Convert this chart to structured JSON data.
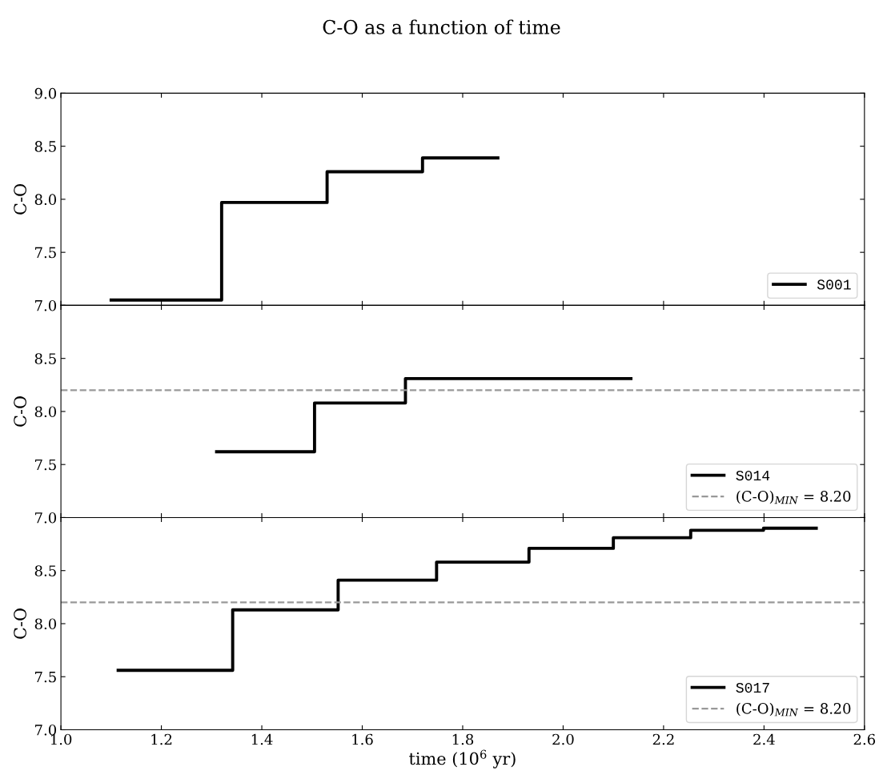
{
  "chart_data": [
    {
      "type": "step",
      "title": "C-O as a function of time",
      "ylabel": "C-O",
      "xlim": [
        1.0,
        2.6
      ],
      "xticks": [
        {
          "value": 1.0,
          "label": null
        },
        {
          "value": 1.2,
          "label": null
        },
        {
          "value": 1.4,
          "label": null
        },
        {
          "value": 1.6,
          "label": null
        },
        {
          "value": 1.8,
          "label": null
        },
        {
          "value": 2.0,
          "label": null
        },
        {
          "value": 2.2,
          "label": null
        },
        {
          "value": 2.4,
          "label": null
        },
        {
          "value": 2.6,
          "label": null
        }
      ],
      "ylim": [
        7.0,
        9.0
      ],
      "yticks": [
        {
          "value": 7.0,
          "label": "7.0"
        },
        {
          "value": 7.5,
          "label": "7.5"
        },
        {
          "value": 8.0,
          "label": "8.0"
        },
        {
          "value": 8.5,
          "label": "8.5"
        },
        {
          "value": 9.0,
          "label": "9.0"
        }
      ],
      "tick_labels": "y",
      "legend": "bottom right",
      "grid": false,
      "series": [
        {
          "name": "S001",
          "color": "#000000",
          "x": [
            1.1,
            1.32,
            1.53,
            1.72,
            1.87
          ],
          "values": [
            7.05,
            7.97,
            8.26,
            8.39,
            8.39
          ]
        }
      ]
    },
    {
      "type": "step",
      "ylabel": "C-O",
      "xlim": [
        1.0,
        2.6
      ],
      "xticks": [
        {
          "value": 1.0,
          "label": null
        },
        {
          "value": 1.2,
          "label": null
        },
        {
          "value": 1.4,
          "label": null
        },
        {
          "value": 1.6,
          "label": null
        },
        {
          "value": 1.8,
          "label": null
        },
        {
          "value": 2.0,
          "label": null
        },
        {
          "value": 2.2,
          "label": null
        },
        {
          "value": 2.4,
          "label": null
        },
        {
          "value": 2.6,
          "label": null
        }
      ],
      "ylim": [
        7.0,
        9.0
      ],
      "yticks": [
        {
          "value": 7.0,
          "label": "7.0"
        },
        {
          "value": 7.5,
          "label": "7.5"
        },
        {
          "value": 8.0,
          "label": "8.0"
        },
        {
          "value": 8.5,
          "label": "8.5"
        },
        {
          "value": 9.0,
          "label": null
        }
      ],
      "tick_labels": "y",
      "legend": "bottom right",
      "grid": false,
      "series": [
        {
          "name": "S014",
          "color": "#000000",
          "x": [
            1.31,
            1.505,
            1.686,
            2.135
          ],
          "values": [
            7.62,
            8.08,
            8.31,
            8.31
          ]
        }
      ],
      "ref_lines": [
        {
          "axis": "y",
          "value": 8.2,
          "label": "(C-O)$_{MIN}$ = 8.20",
          "color": "#999999",
          "line_style": "dashed"
        }
      ]
    },
    {
      "type": "step",
      "ylabel": "C-O",
      "xlabel": "time (10$^{6}$ yr)",
      "xlim": [
        1.0,
        2.6
      ],
      "xticks": [
        {
          "value": 1.0,
          "label": "1.0"
        },
        {
          "value": 1.2,
          "label": "1.2"
        },
        {
          "value": 1.4,
          "label": "1.4"
        },
        {
          "value": 1.6,
          "label": "1.6"
        },
        {
          "value": 1.8,
          "label": "1.8"
        },
        {
          "value": 2.0,
          "label": "2.0"
        },
        {
          "value": 2.2,
          "label": "2.2"
        },
        {
          "value": 2.4,
          "label": "2.4"
        },
        {
          "value": 2.6,
          "label": "2.6"
        }
      ],
      "ylim": [
        7.0,
        9.0
      ],
      "yticks": [
        {
          "value": 7.0,
          "label": "7.0"
        },
        {
          "value": 7.5,
          "label": "7.5"
        },
        {
          "value": 8.0,
          "label": "8.0"
        },
        {
          "value": 8.5,
          "label": "8.5"
        },
        {
          "value": 9.0,
          "label": null
        }
      ],
      "legend": "bottom right",
      "grid": false,
      "series": [
        {
          "name": "S017",
          "color": "#000000",
          "x": [
            1.114,
            1.342,
            1.552,
            1.748,
            1.932,
            2.1,
            2.254,
            2.399,
            2.504
          ],
          "values": [
            7.56,
            8.13,
            8.41,
            8.58,
            8.71,
            8.81,
            8.88,
            8.9,
            8.9
          ]
        }
      ],
      "ref_lines": [
        {
          "axis": "y",
          "value": 8.2,
          "label": "(C-O)$_{MIN}$ = 8.20",
          "color": "#999999",
          "line_style": "dashed"
        }
      ]
    }
  ]
}
